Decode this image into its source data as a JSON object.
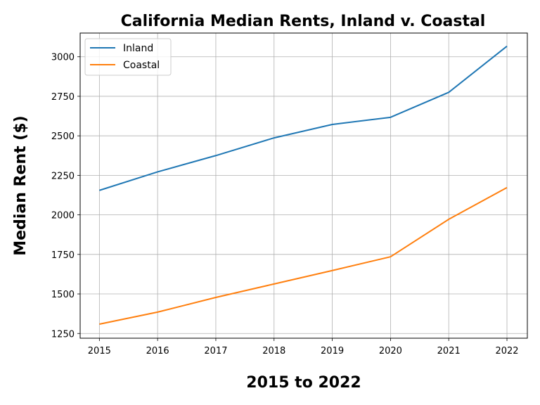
{
  "chart_data": {
    "type": "line",
    "title": "California Median Rents, Inland v. Coastal",
    "xlabel": "2015 to 2022",
    "ylabel": "Median Rent ($)",
    "x": [
      2015,
      2016,
      2017,
      2018,
      2019,
      2020,
      2021,
      2022
    ],
    "xlim": [
      2014.67,
      2022.35
    ],
    "ylim": [
      1220,
      3150
    ],
    "yticks": [
      1250,
      1500,
      1750,
      2000,
      2250,
      2500,
      2750,
      3000
    ],
    "grid": true,
    "legend_position": "top-left",
    "series": [
      {
        "name": "Inland",
        "color": "#1f77b4",
        "values": [
          2155,
          2272,
          2375,
          2487,
          2572,
          2617,
          2775,
          3067
        ]
      },
      {
        "name": "Coastal",
        "color": "#ff7f0e",
        "values": [
          1309,
          1385,
          1478,
          1563,
          1648,
          1735,
          1972,
          2173
        ]
      }
    ]
  }
}
